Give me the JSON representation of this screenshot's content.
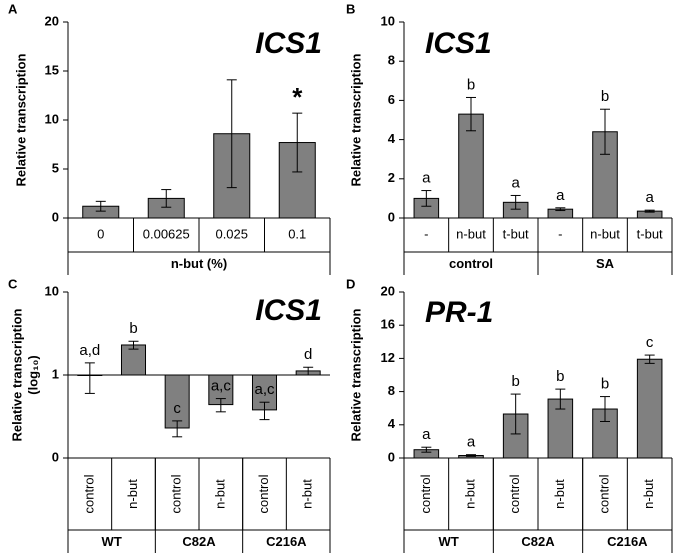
{
  "chart_data": [
    {
      "type": "bar",
      "panel": "A",
      "title": "ICS1",
      "ylabel": "Relative transcription",
      "xlabel": "n-but (%)",
      "categories": [
        "0",
        "0.00625",
        "0.025",
        "0.1"
      ],
      "series": [
        {
          "color": "#808080",
          "values": [
            1.2,
            2.0,
            8.6,
            7.7
          ],
          "errors": [
            0.5,
            0.9,
            5.5,
            3.0
          ]
        }
      ],
      "annotations": [
        null,
        null,
        null,
        "*"
      ],
      "ylim": [
        0,
        20
      ],
      "yticks": [
        0,
        5,
        10,
        15,
        20
      ]
    },
    {
      "type": "bar",
      "panel": "B",
      "title": "ICS1",
      "ylabel": "Relative transcription",
      "categories": [
        "-",
        "n-but",
        "t-but",
        "-",
        "n-but",
        "t-but"
      ],
      "groups": [
        "control",
        "SA"
      ],
      "series": [
        {
          "color": "#808080",
          "values": [
            1.0,
            5.3,
            0.8,
            0.45,
            4.4,
            0.35
          ],
          "errors": [
            0.4,
            0.85,
            0.35,
            0.07,
            1.15,
            0.05
          ]
        }
      ],
      "annotations": [
        "a",
        "b",
        "a",
        "a",
        "b",
        "a"
      ],
      "ylim": [
        0,
        10
      ],
      "yticks": [
        0,
        2,
        4,
        6,
        8,
        10
      ]
    },
    {
      "type": "bar",
      "panel": "C",
      "title": "ICS1",
      "ylabel": "Relative transcription",
      "ylabel2": "(log₁₀)",
      "log_scale": true,
      "categories": [
        "control",
        "n-but",
        "control",
        "n-but",
        "control",
        "n-but"
      ],
      "groups": [
        "WT",
        "C82A",
        "C216A"
      ],
      "series": [
        {
          "color": "#808080",
          "values": [
            1.0,
            2.3,
            0.23,
            0.44,
            0.38,
            1.12
          ],
          "errors": [
            0.4,
            0.25,
            0.05,
            0.08,
            0.09,
            0.12
          ]
        }
      ],
      "annotations": [
        "a,d",
        "b",
        "c",
        "a,c",
        "a,c",
        "d"
      ],
      "ylim": [
        0.1,
        10
      ],
      "yticks": [
        {
          "value": 0.1,
          "label": "0"
        },
        1,
        10
      ]
    },
    {
      "type": "bar",
      "panel": "D",
      "title": "PR-1",
      "ylabel": "Relative transcription",
      "categories": [
        "control",
        "n-but",
        "control",
        "n-but",
        "control",
        "n-but"
      ],
      "groups": [
        "WT",
        "C82A",
        "C216A"
      ],
      "series": [
        {
          "color": "#808080",
          "values": [
            1.0,
            0.3,
            5.3,
            7.1,
            5.9,
            11.9
          ],
          "errors": [
            0.3,
            0.1,
            2.4,
            1.2,
            1.5,
            0.5
          ]
        }
      ],
      "annotations": [
        "a",
        "a",
        "b",
        "b",
        "b",
        "c"
      ],
      "ylim": [
        0,
        20
      ],
      "yticks": [
        0,
        4,
        8,
        12,
        16,
        20
      ]
    }
  ]
}
